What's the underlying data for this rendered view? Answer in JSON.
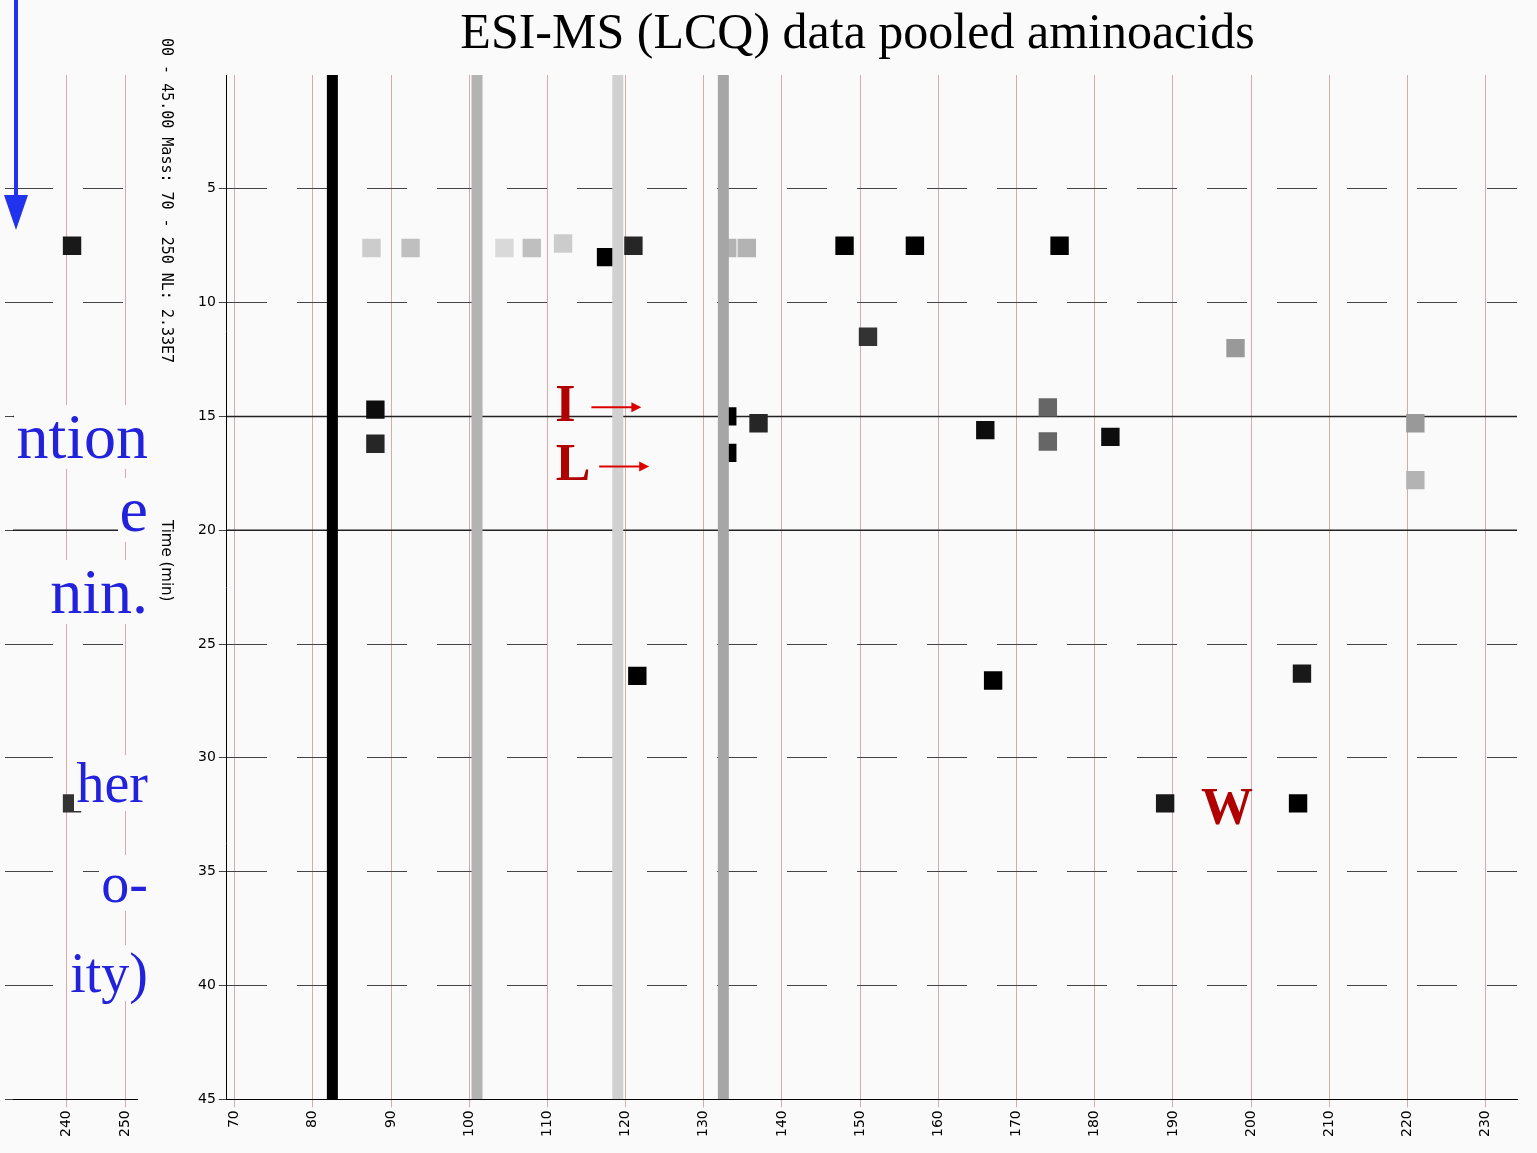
{
  "slide_text": [
    "ntion",
    "e",
    "nin.",
    "her",
    "o-",
    "ity)"
  ],
  "chart_data": [
    {
      "type": "scatter",
      "title": "ESI-MS (LCQ) data pooled aminoacids",
      "header": "00 - 45.00 Mass: 70 - 250 NL: 2.33E7",
      "y_label": "Time (min)",
      "xlim": [
        69,
        234
      ],
      "xticks": [
        70,
        80,
        90,
        100,
        110,
        120,
        130,
        140,
        150,
        160,
        170,
        180,
        190,
        200,
        210,
        220,
        230
      ],
      "ylim": [
        45,
        0
      ],
      "yticks": [
        5,
        10,
        15,
        20,
        25,
        30,
        35,
        40,
        45
      ],
      "grid": true,
      "bands": {
        "x": [
          82.5,
          101,
          119,
          132.5
        ],
        "intensity": [
          1,
          0.3,
          0.18,
          0.35
        ]
      },
      "spots": {
        "x": [
          117.5,
          121,
          148,
          157,
          175.5,
          87.5,
          92.5,
          104.5,
          108,
          112,
          133,
          135.5,
          151,
          198,
          88,
          88,
          133,
          133,
          137,
          166,
          174,
          174,
          182,
          221,
          221,
          121.5,
          167,
          206.5,
          189,
          206
        ],
        "y": [
          8,
          7.5,
          7.5,
          7.5,
          7.5,
          7.6,
          7.6,
          7.6,
          7.6,
          7.4,
          7.6,
          7.6,
          11.5,
          12,
          14.7,
          16.2,
          15,
          16.6,
          15.3,
          15.6,
          14.6,
          16.1,
          15.9,
          15.3,
          17.8,
          26.4,
          26.6,
          26.3,
          32,
          32
        ],
        "intensity": [
          1,
          0.85,
          1,
          1,
          1,
          0.2,
          0.25,
          0.15,
          0.25,
          0.2,
          0.3,
          0.3,
          0.8,
          0.4,
          0.95,
          0.85,
          1,
          1,
          0.85,
          0.95,
          0.6,
          0.6,
          0.95,
          0.4,
          0.3,
          1,
          1,
          0.9,
          0.9,
          1
        ]
      },
      "reference_lines": [
        15,
        20
      ],
      "annotations": [
        {
          "text": "I",
          "x": 112.3,
          "y": 14.6,
          "arrow": true
        },
        {
          "text": "L",
          "x": 113.3,
          "y": 17.2,
          "arrow": true
        },
        {
          "text": "W",
          "x": 196.9,
          "y": 32.3
        }
      ]
    },
    {
      "type": "scatter",
      "xlim": [
        231,
        252
      ],
      "xticks": [
        240,
        250
      ],
      "ylim": [
        45,
        0
      ],
      "yticks": [
        5,
        10,
        15,
        20,
        25,
        30,
        35,
        40,
        45
      ],
      "grid": true,
      "tick_labels": "x",
      "spots": {
        "x": [
          241,
          241
        ],
        "y": [
          7.5,
          32
        ],
        "intensity": [
          0.9,
          0.8
        ]
      },
      "reference_lines": [
        15,
        20
      ]
    }
  ]
}
